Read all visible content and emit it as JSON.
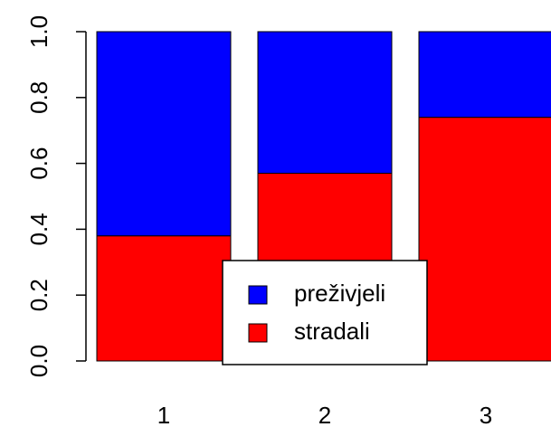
{
  "chart_data": {
    "type": "stacked_bar",
    "categories": [
      "1",
      "2",
      "3"
    ],
    "series": [
      {
        "name": "stradali",
        "color": "#ff0000",
        "values": [
          0.38,
          0.57,
          0.74
        ]
      },
      {
        "name": "preživjeli",
        "color": "#0000ff",
        "values": [
          0.62,
          0.43,
          0.26
        ]
      }
    ],
    "ylim": [
      0,
      1
    ],
    "yticks": [
      {
        "value": 0,
        "label": "0.0"
      },
      {
        "value": 0.2,
        "label": "0.2"
      },
      {
        "value": 0.4,
        "label": "0.4"
      },
      {
        "value": 0.6,
        "label": "0.6"
      },
      {
        "value": 0.8,
        "label": "0.8"
      },
      {
        "value": 1,
        "label": "1.0"
      }
    ],
    "legend": "bottom"
  }
}
